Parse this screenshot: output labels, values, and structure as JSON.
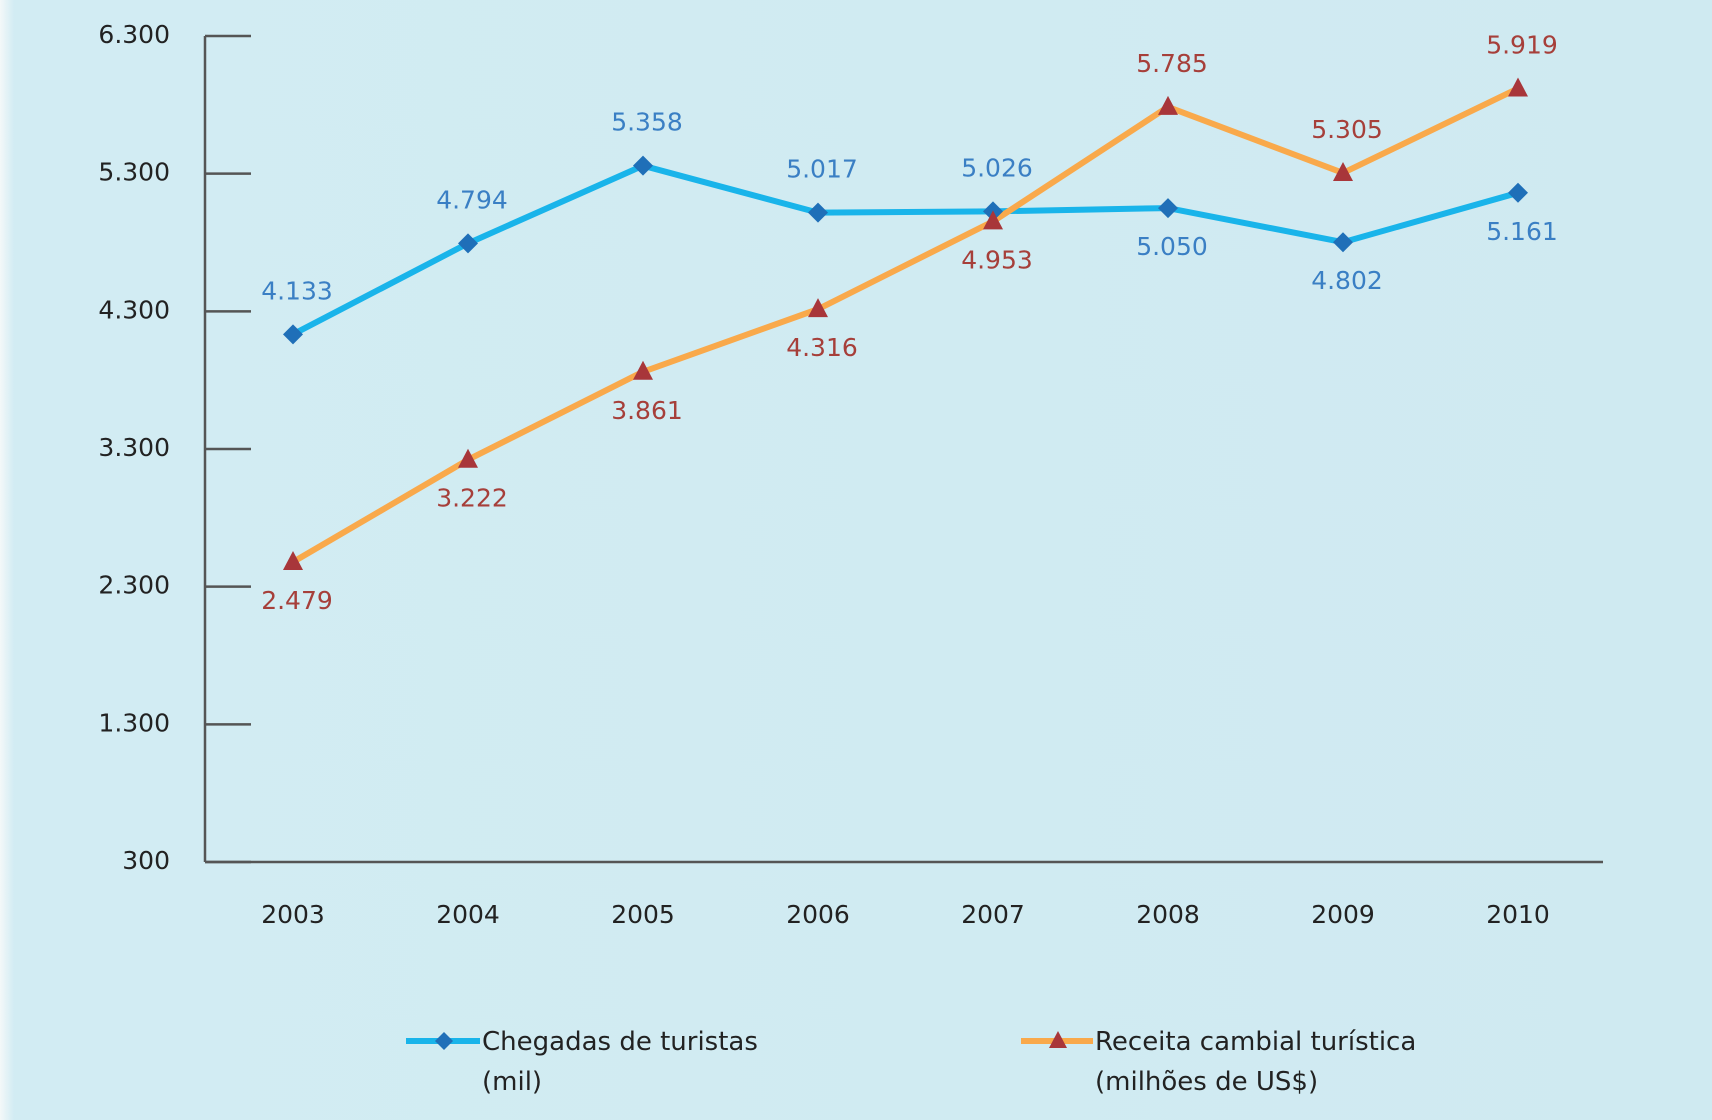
{
  "chart_data": {
    "type": "line",
    "categories": [
      "2003",
      "2004",
      "2005",
      "2006",
      "2007",
      "2008",
      "2009",
      "2010"
    ],
    "series": [
      {
        "name": "Chegadas de turistas (mil)",
        "color": "#19b4ea",
        "marker_color": "#1f6fb8",
        "marker": "diamond",
        "values": [
          4133,
          4794,
          5358,
          5017,
          5026,
          5050,
          4802,
          5161
        ],
        "value_labels": [
          "4.133",
          "4.794",
          "5.358",
          "5.017",
          "5.026",
          "5.050",
          "4.802",
          "5.161"
        ]
      },
      {
        "name": "Receita cambial turística (milhões de US$)",
        "color": "#f9a94b",
        "marker_color": "#a8363a",
        "marker": "triangle",
        "values": [
          2479,
          3222,
          3861,
          4316,
          4953,
          5785,
          5305,
          5919
        ],
        "value_labels": [
          "2.479",
          "3.222",
          "3.861",
          "4.316",
          "4.953",
          "5.785",
          "5.305",
          "5.919"
        ]
      }
    ],
    "ylim": [
      300,
      6300
    ],
    "yticks": [
      {
        "value": 300,
        "label": "300"
      },
      {
        "value": 1300,
        "label": "1.300"
      },
      {
        "value": 2300,
        "label": "2.300"
      },
      {
        "value": 3300,
        "label": "3.300"
      },
      {
        "value": 4300,
        "label": "4.300"
      },
      {
        "value": 5300,
        "label": "5.300"
      },
      {
        "value": 6300,
        "label": "6.300"
      }
    ],
    "grid": false,
    "legend": "bottom"
  }
}
